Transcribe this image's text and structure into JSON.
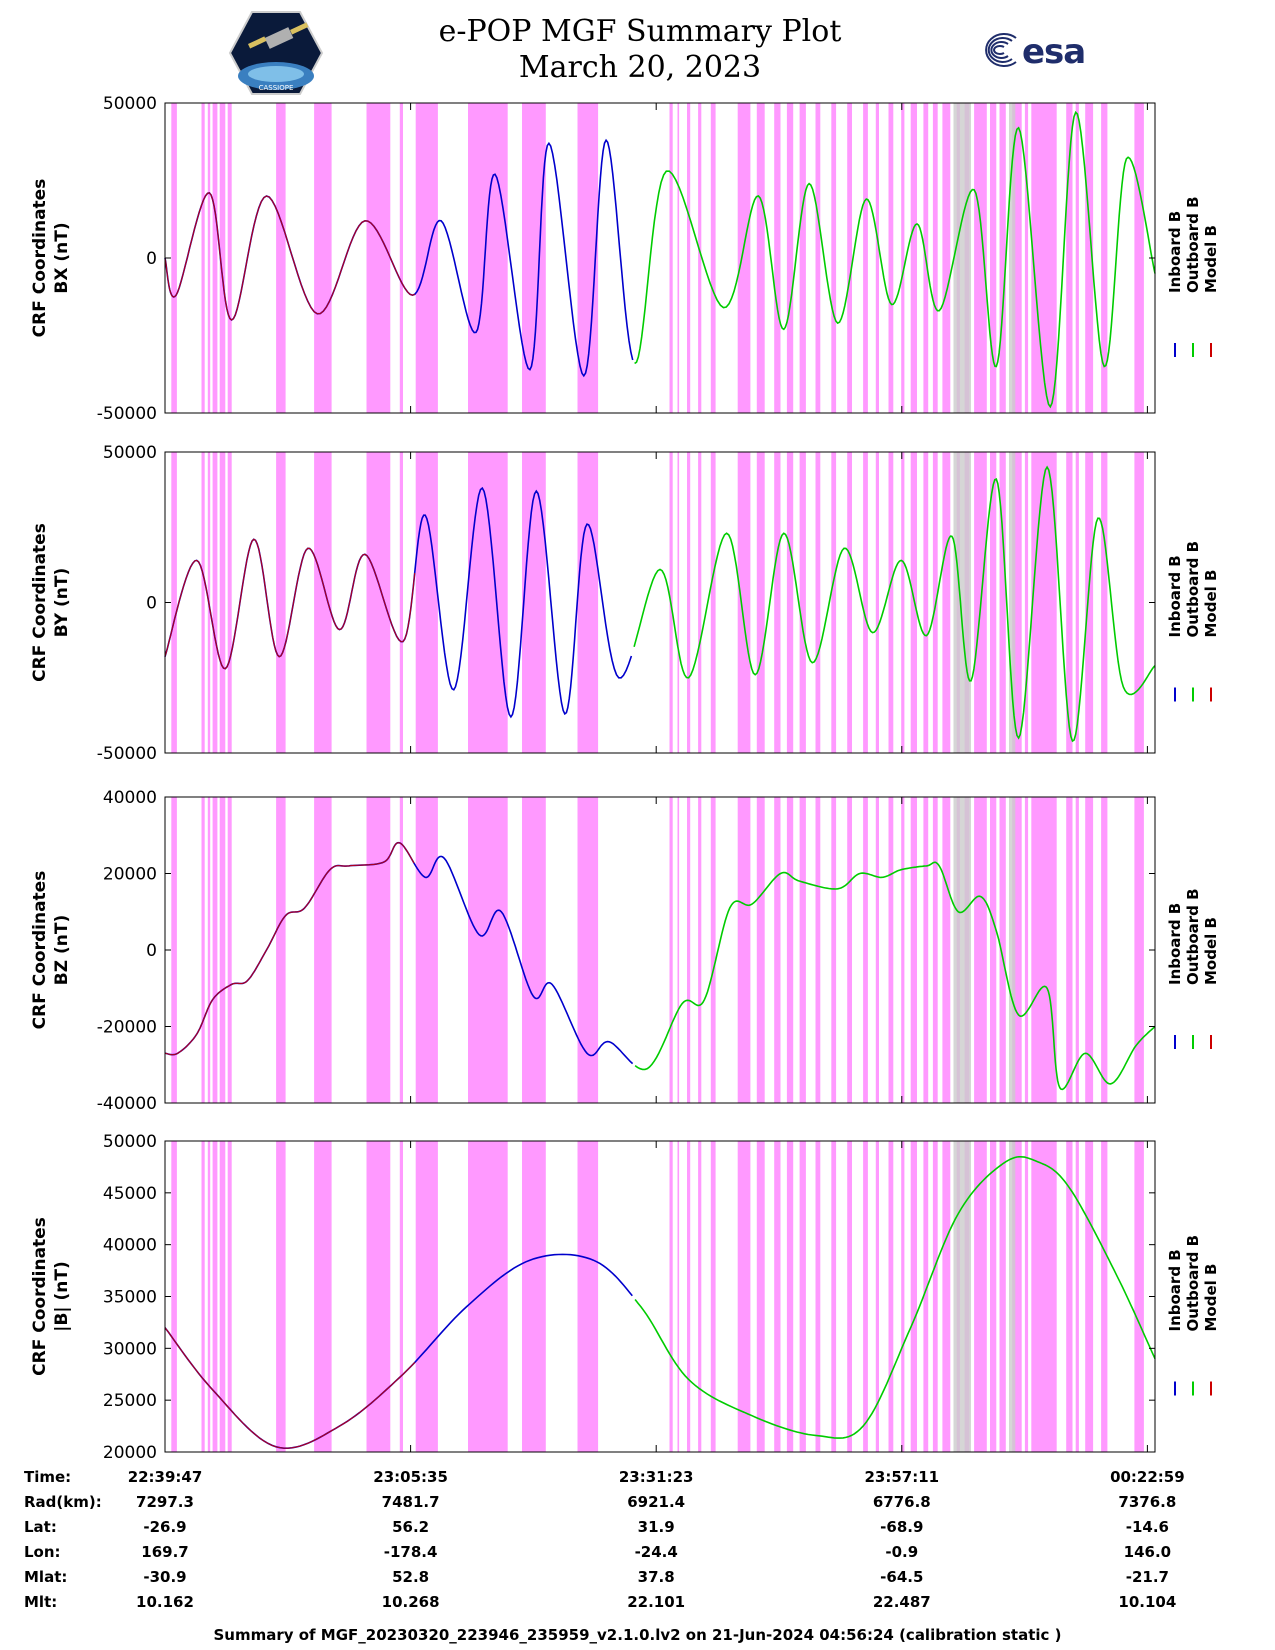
{
  "header": {
    "title_line1": "e-POP MGF Summary Plot",
    "title_line2": "March 20, 2023",
    "left_logo": "cassiope-mission-logo",
    "right_logo_text": "esa",
    "left_logo_caption": "CASSIOPE"
  },
  "colors": {
    "inboard": "#0000cc",
    "outboard": "#00cc00",
    "model": "#cc0000",
    "shading": "#ff99ff"
  },
  "chart_data": {
    "type": "line",
    "x_range": [
      0,
      6240
    ],
    "x_tick_positions": [
      0,
      1548,
      3096,
      4644,
      6192
    ],
    "legend": [
      "Inboard B",
      "Outboard B",
      "Model B"
    ],
    "legend_position": "right",
    "series_switches": {
      "inboard_until": 2950,
      "outboard_from": 2950,
      "model_until": 1580
    },
    "shaded_intervals": [
      [
        40,
        75
      ],
      [
        230,
        250
      ],
      [
        270,
        285
      ],
      [
        300,
        330
      ],
      [
        345,
        380
      ],
      [
        395,
        420
      ],
      [
        700,
        760
      ],
      [
        940,
        1050
      ],
      [
        1270,
        1420
      ],
      [
        1480,
        1500
      ],
      [
        1580,
        1720
      ],
      [
        1910,
        2160
      ],
      [
        2250,
        2400
      ],
      [
        2600,
        2730
      ],
      [
        3180,
        3200
      ],
      [
        3230,
        3240
      ],
      [
        3290,
        3310
      ],
      [
        3360,
        3380
      ],
      [
        3440,
        3470
      ],
      [
        3610,
        3690
      ],
      [
        3730,
        3780
      ],
      [
        3840,
        3880
      ],
      [
        3920,
        3960
      ],
      [
        4000,
        4040
      ],
      [
        4100,
        4130
      ],
      [
        4200,
        4230
      ],
      [
        4300,
        4330
      ],
      [
        4400,
        4430
      ],
      [
        4480,
        4500
      ],
      [
        4560,
        4590
      ],
      [
        4640,
        4660
      ],
      [
        4700,
        4740
      ],
      [
        4780,
        4810
      ],
      [
        4840,
        4870
      ],
      [
        4900,
        4950
      ],
      [
        4990,
        5010
      ],
      [
        5040,
        5070
      ],
      [
        5100,
        5180
      ],
      [
        5200,
        5240
      ],
      [
        5260,
        5300
      ],
      [
        5340,
        5400
      ],
      [
        5420,
        5440
      ],
      [
        5460,
        5620
      ],
      [
        5680,
        5720
      ],
      [
        5740,
        5760
      ],
      [
        5800,
        5850
      ],
      [
        5900,
        5940
      ],
      [
        6110,
        6170
      ]
    ],
    "gray_intervals": [
      [
        4970,
        5080
      ],
      [
        5320,
        5360
      ]
    ],
    "panels": [
      {
        "id": "bx",
        "ylabel_line1": "CRF Coordinates",
        "ylabel_line2": "BX (nT)",
        "ylim": [
          -50000,
          50000
        ],
        "yticks": [
          "50000",
          "0",
          "-50000"
        ],
        "ytick_values": [
          50000,
          0,
          -50000
        ],
        "x": [
          0,
          70,
          280,
          420,
          640,
          960,
          1260,
          1560,
          1740,
          1960,
          2080,
          2300,
          2420,
          2640,
          2780,
          2960,
          3160,
          3520,
          3740,
          3900,
          4060,
          4240,
          4420,
          4580,
          4740,
          4880,
          5100,
          5240,
          5380,
          5580,
          5740,
          5920,
          6060,
          6240
        ],
        "values": [
          0,
          -12000,
          21000,
          -20000,
          20000,
          -18000,
          12000,
          -12000,
          12000,
          -24000,
          27000,
          -36000,
          37000,
          -38000,
          38000,
          -34000,
          28000,
          -16000,
          20000,
          -23000,
          24000,
          -21000,
          19000,
          -15000,
          11000,
          -17000,
          22000,
          -35000,
          42000,
          -48000,
          47000,
          -35000,
          32000,
          -5000
        ]
      },
      {
        "id": "by",
        "ylabel_line1": "CRF Coordinates",
        "ylabel_line2": "BY (nT)",
        "ylim": [
          -50000,
          50000
        ],
        "yticks": [
          "50000",
          "0",
          "-50000"
        ],
        "ytick_values": [
          50000,
          0,
          -50000
        ],
        "x": [
          0,
          200,
          380,
          560,
          720,
          900,
          1100,
          1260,
          1500,
          1640,
          1820,
          2000,
          2180,
          2340,
          2520,
          2660,
          2860,
          3120,
          3300,
          3540,
          3720,
          3900,
          4080,
          4280,
          4460,
          4640,
          4800,
          4960,
          5080,
          5240,
          5380,
          5560,
          5720,
          5880,
          6040,
          6240
        ],
        "values": [
          -18000,
          14000,
          -22000,
          21000,
          -18000,
          18000,
          -9000,
          16000,
          -13000,
          29000,
          -29000,
          38000,
          -38000,
          37000,
          -37000,
          26000,
          -25000,
          11000,
          -25000,
          23000,
          -24000,
          23000,
          -20000,
          18000,
          -10000,
          14000,
          -11000,
          22000,
          -26000,
          41000,
          -45000,
          45000,
          -46000,
          28000,
          -28000,
          -21000
        ]
      },
      {
        "id": "bz",
        "ylabel_line1": "CRF Coordinates",
        "ylabel_line2": "BZ (nT)",
        "ylim": [
          -40000,
          40000
        ],
        "yticks": [
          "40000",
          "20000",
          "0",
          "-20000",
          "-40000"
        ],
        "ytick_values": [
          40000,
          20000,
          0,
          -20000,
          -40000
        ],
        "x": [
          0,
          80,
          200,
          300,
          420,
          520,
          640,
          760,
          880,
          1040,
          1160,
          1380,
          1480,
          1640,
          1760,
          1980,
          2120,
          2320,
          2440,
          2660,
          2800,
          3040,
          3260,
          3400,
          3560,
          3700,
          3880,
          4000,
          4240,
          4380,
          4520,
          4640,
          4800,
          4880,
          5000,
          5140,
          5240,
          5380,
          5560,
          5640,
          5800,
          5960,
          6120,
          6240
        ],
        "values": [
          -27000,
          -27000,
          -22000,
          -13000,
          -9000,
          -8000,
          0,
          9000,
          11000,
          21000,
          22000,
          23000,
          28000,
          19000,
          24000,
          4000,
          10000,
          -12000,
          -9000,
          -27000,
          -24000,
          -31000,
          -14000,
          -13000,
          11000,
          12000,
          20000,
          18000,
          16000,
          20000,
          19000,
          21000,
          22000,
          22000,
          10000,
          14000,
          5000,
          -17000,
          -10000,
          -36000,
          -27000,
          -35000,
          -25000,
          -20000
        ]
      },
      {
        "id": "btot",
        "ylabel_line1": "CRF Coordinates",
        "ylabel_line2": "|B| (nT)",
        "ylim": [
          20000,
          50000
        ],
        "yticks": [
          "50000",
          "45000",
          "40000",
          "35000",
          "30000",
          "25000",
          "20000"
        ],
        "ytick_values": [
          50000,
          45000,
          40000,
          35000,
          30000,
          25000,
          20000
        ],
        "x": [
          0,
          300,
          700,
          1100,
          1500,
          1900,
          2300,
          2700,
          3000,
          3300,
          3700,
          4100,
          4400,
          4700,
          5000,
          5300,
          5500,
          5700,
          6000,
          6240
        ],
        "values": [
          32000,
          26000,
          20500,
          22500,
          27500,
          34000,
          38500,
          38500,
          34000,
          27000,
          23500,
          21600,
          22500,
          32000,
          43000,
          48000,
          48000,
          45500,
          37000,
          29000
        ]
      }
    ]
  },
  "table": {
    "row_labels": [
      "Time:",
      "Rad(km):",
      "Lat:",
      "Lon:",
      "Mlat:",
      "Mlt:"
    ],
    "columns": [
      [
        "22:39:47",
        "7297.3",
        "-26.9",
        "169.7",
        "-30.9",
        "10.162"
      ],
      [
        "23:05:35",
        "7481.7",
        "56.2",
        "-178.4",
        "52.8",
        "10.268"
      ],
      [
        "23:31:23",
        "6921.4",
        "31.9",
        "-24.4",
        "37.8",
        "22.101"
      ],
      [
        "23:57:11",
        "6776.8",
        "-68.9",
        "-0.9",
        "-64.5",
        "22.487"
      ],
      [
        "00:22:59",
        "7376.8",
        "-14.6",
        "146.0",
        "-21.7",
        "10.104"
      ]
    ]
  },
  "footer": "Summary of MGF_20230320_223946_235959_v2.1.0.lv2 on 21-Jun-2024 04:56:24 (calibration static )"
}
